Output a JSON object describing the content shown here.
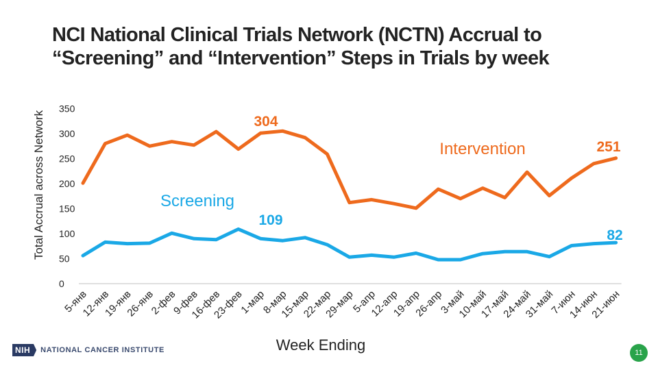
{
  "title_lines": [
    "NCI National Clinical Trials Network (NCTN) Accrual to",
    "“Screening” and “Intervention” Steps in Trials by week"
  ],
  "colors": {
    "intervention": "#ee6a1d",
    "screening": "#1aa8e6",
    "page_badge": "#29a34a"
  },
  "chart_data": {
    "type": "line",
    "title": "NCI National Clinical Trials Network (NCTN) Accrual to “Screening” and “Intervention” Steps in Trials by week",
    "xlabel": "Week Ending",
    "ylabel": "Total Accrual across Network",
    "ylim": [
      0,
      350
    ],
    "yticks": [
      0,
      50,
      100,
      150,
      200,
      250,
      300,
      350
    ],
    "grid": false,
    "categories": [
      "5-янв",
      "12-янв",
      "19-янв",
      "26-янв",
      "2-фев",
      "9-фев",
      "16-фев",
      "23-фев",
      "1-мар",
      "8-мар",
      "15-мар",
      "22-мар",
      "29-мар",
      "5-апр",
      "12-апр",
      "19-апр",
      "26-апр",
      "3-май",
      "10-май",
      "17-май",
      "24-май",
      "31-май",
      "7-июн",
      "14-июн",
      "21-июн"
    ],
    "series": [
      {
        "name": "Intervention",
        "color": "#ee6a1d",
        "values": [
          201,
          280,
          297,
          275,
          284,
          277,
          304,
          269,
          301,
          305,
          292,
          259,
          162,
          168,
          160,
          151,
          189,
          170,
          191,
          172,
          223,
          176,
          211,
          240,
          251
        ]
      },
      {
        "name": "Screening",
        "color": "#1aa8e6",
        "values": [
          56,
          83,
          80,
          81,
          101,
          90,
          88,
          109,
          90,
          86,
          92,
          78,
          53,
          57,
          53,
          61,
          48,
          48,
          60,
          64,
          64,
          54,
          76,
          80,
          82
        ]
      }
    ],
    "series_labels": [
      "Intervention",
      "Screening"
    ],
    "annotations": [
      {
        "text": "304",
        "series": 0,
        "value": 304
      },
      {
        "text": "251",
        "series": 0,
        "value": 251
      },
      {
        "text": "109",
        "series": 1,
        "value": 109
      },
      {
        "text": "82",
        "series": 1,
        "value": 82
      }
    ]
  },
  "footer": {
    "logo_badge": "NIH",
    "logo_text": "NATIONAL CANCER INSTITUTE",
    "page_number": "11"
  }
}
